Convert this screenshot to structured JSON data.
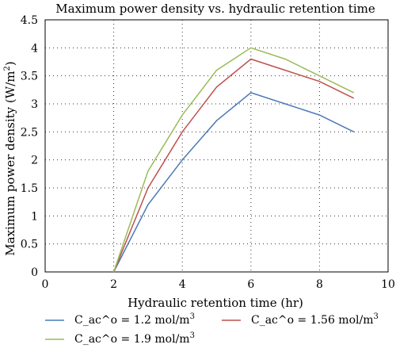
{
  "chart_data": {
    "type": "line",
    "title": "Maximum power density vs. hydraulic retention time",
    "xlabel": "Hydraulic retention time (hr)",
    "ylabel_main": "Maximum power density (W/m",
    "ylabel_sup": "2",
    "ylabel_tail": ")",
    "xlim": [
      0,
      10
    ],
    "ylim": [
      0,
      4.5
    ],
    "x_ticks": [
      "0",
      "2",
      "4",
      "6",
      "8",
      "10"
    ],
    "y_ticks": [
      "0",
      "0.5",
      "1",
      "1.5",
      "2",
      "2.5",
      "3",
      "3.5",
      "4",
      "4.5"
    ],
    "grid": "dotted, at x ticks and y ticks",
    "legend_placement": "bottom, below plot",
    "series": [
      {
        "name_main": "C_ac^o = 1.2 mol/m",
        "name_sup": "3",
        "color": "#4a7ab8",
        "x": [
          2,
          3,
          4,
          5,
          6,
          7,
          8,
          9
        ],
        "y": [
          0,
          1.2,
          2.0,
          2.7,
          3.2,
          3.0,
          2.8,
          2.5
        ]
      },
      {
        "name_main": "C_ac^o = 1.56 mol/m",
        "name_sup": "3",
        "color": "#c0504d",
        "x": [
          2,
          3,
          4,
          5,
          6,
          7,
          8,
          9
        ],
        "y": [
          0,
          1.5,
          2.5,
          3.3,
          3.8,
          3.6,
          3.4,
          3.1
        ]
      },
      {
        "name_main": "C_ac^o = 1.9 mol/m",
        "name_sup": "3",
        "color": "#9bbb59",
        "x": [
          2,
          3,
          4,
          5,
          6,
          7,
          8,
          9
        ],
        "y": [
          0,
          1.8,
          2.8,
          3.6,
          4.0,
          3.8,
          3.5,
          3.2
        ]
      }
    ]
  }
}
